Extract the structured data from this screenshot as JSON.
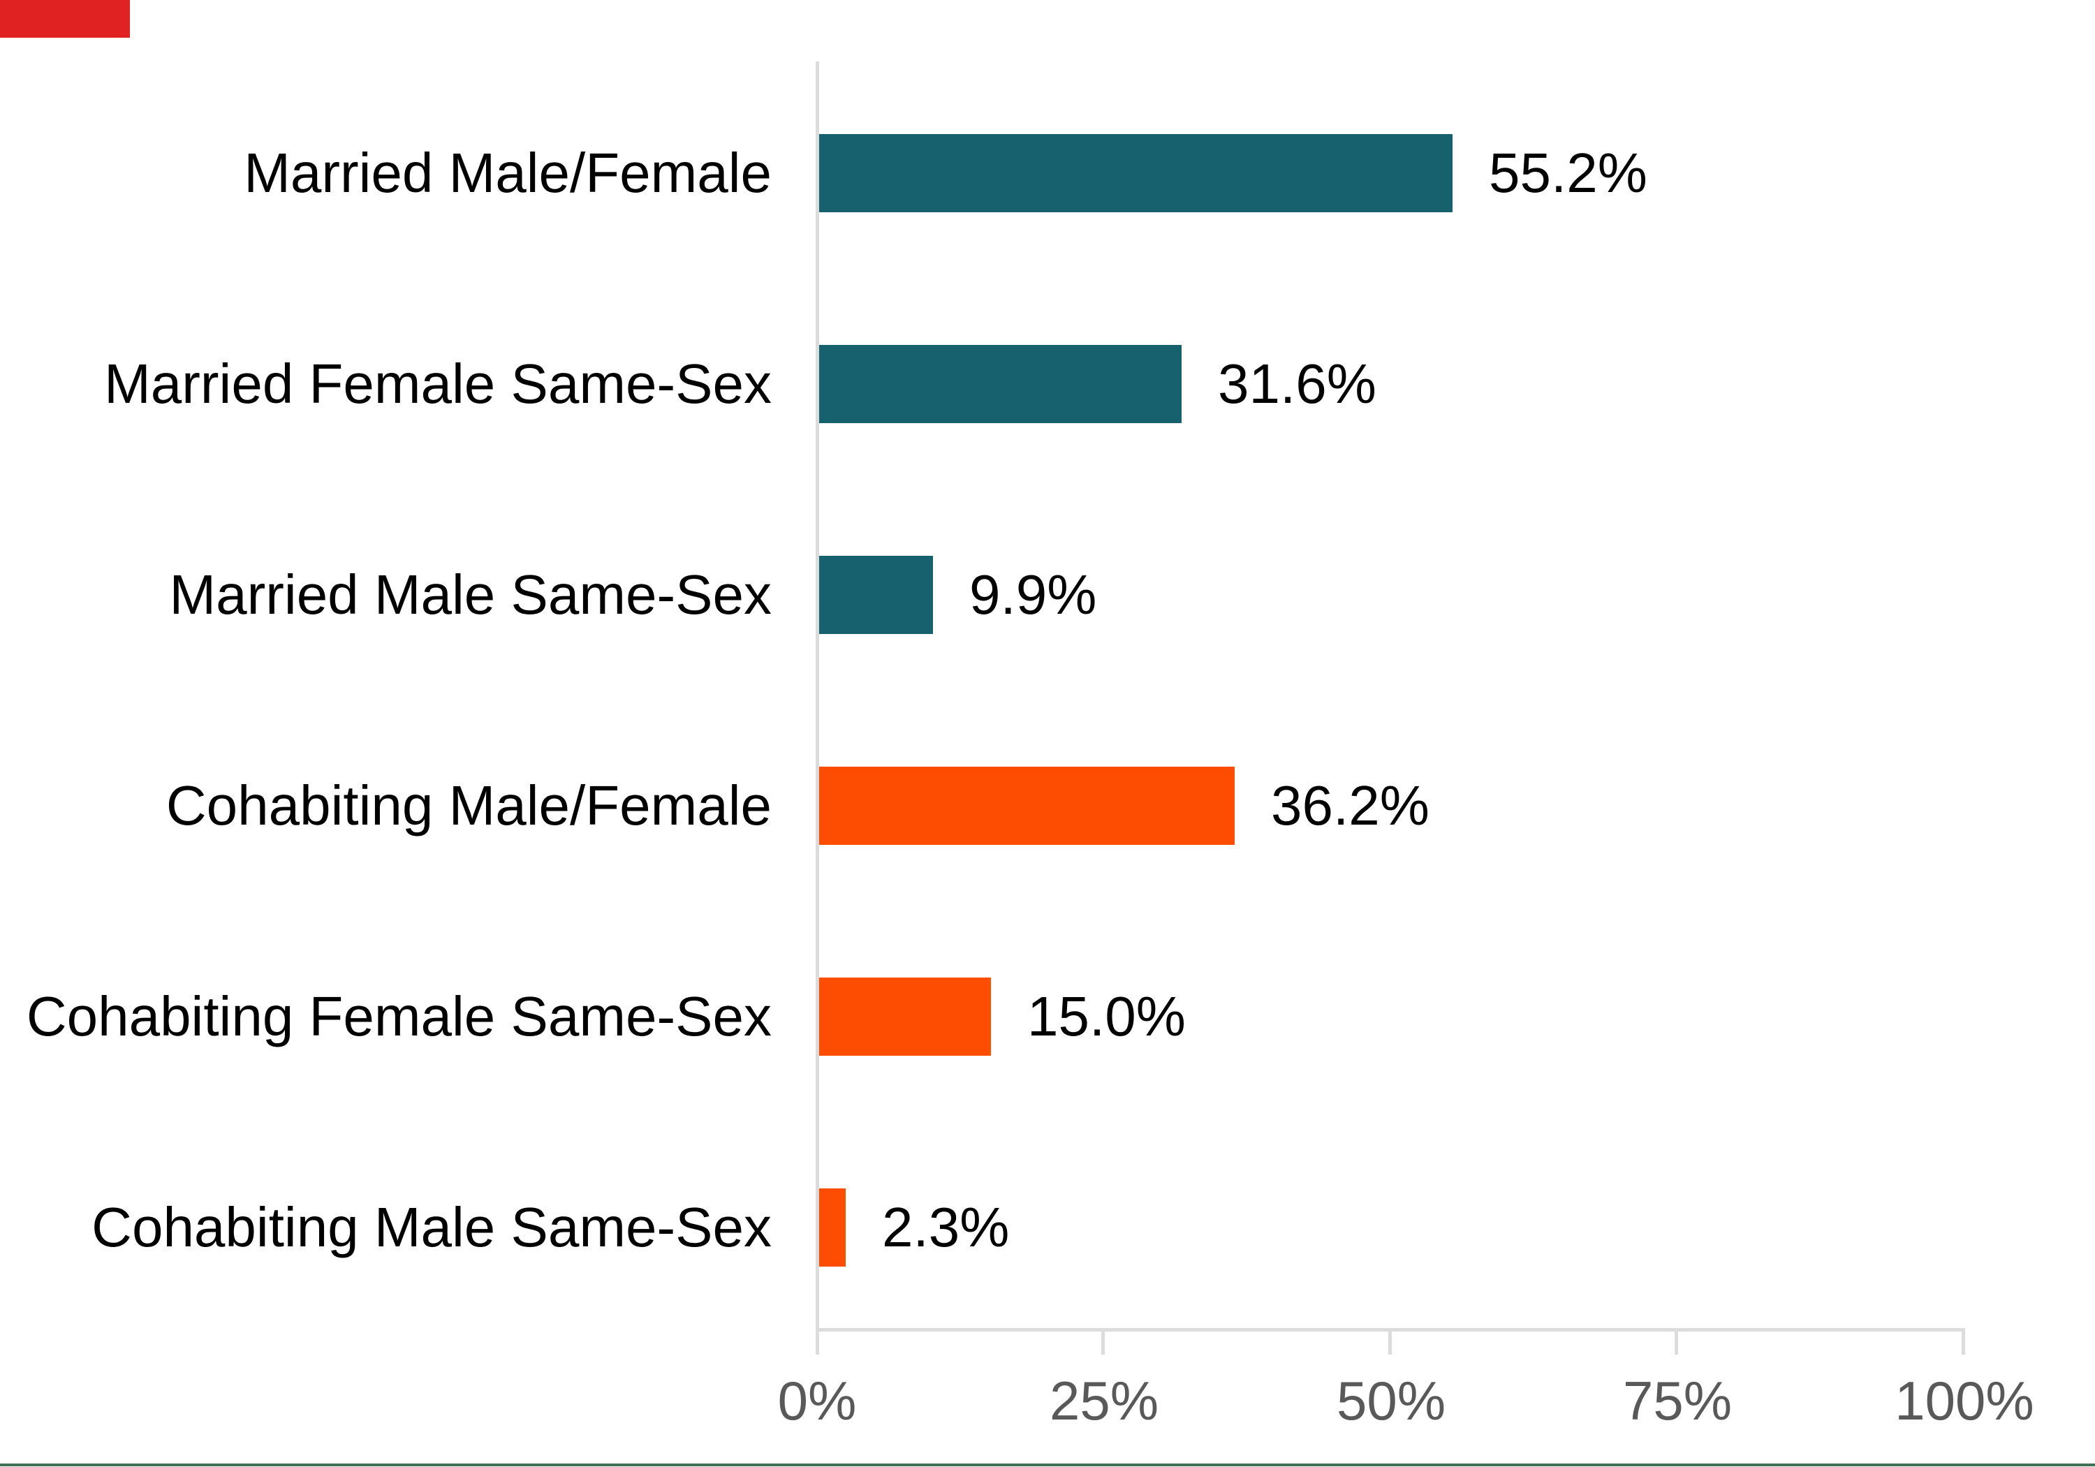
{
  "chart_data": {
    "type": "bar",
    "orientation": "horizontal",
    "title": "",
    "xlabel": "",
    "ylabel": "",
    "xlim": [
      0,
      100
    ],
    "grid": false,
    "legend": "none",
    "x_ticks": [
      "0%",
      "25%",
      "50%",
      "75%",
      "100%"
    ],
    "rows": [
      {
        "label": "Married Male/Female",
        "value": 55.2,
        "value_label": "55.2%",
        "group": "married"
      },
      {
        "label": "Married Female Same-Sex",
        "value": 31.6,
        "value_label": "31.6%",
        "group": "married"
      },
      {
        "label": "Married Male Same-Sex",
        "value": 9.9,
        "value_label": "9.9%",
        "group": "married"
      },
      {
        "label": "Cohabiting Male/Female",
        "value": 36.2,
        "value_label": "36.2%",
        "group": "cohabiting"
      },
      {
        "label": "Cohabiting Female Same-Sex",
        "value": 15.0,
        "value_label": "15.0%",
        "group": "cohabiting"
      },
      {
        "label": "Cohabiting Male Same-Sex",
        "value": 2.3,
        "value_label": "2.3%",
        "group": "cohabiting"
      }
    ],
    "colors": {
      "married": "#16616d",
      "cohabiting": "#fc4d02",
      "axis": "#dcdcdc",
      "tick_text": "#595959",
      "label_text": "#000000",
      "corner_mark": "#e02222",
      "bottom_line": "#3f7253"
    }
  }
}
